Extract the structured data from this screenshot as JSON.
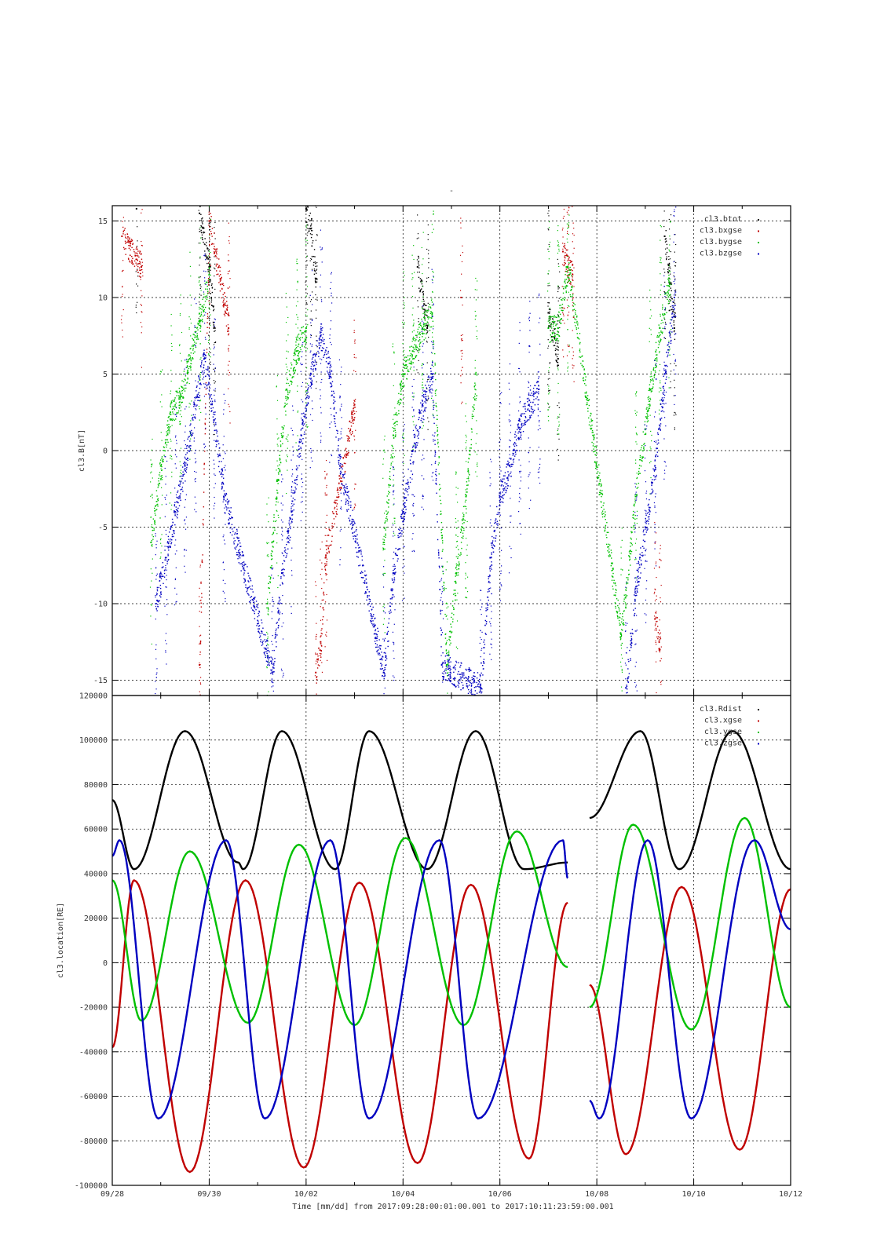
{
  "figure": {
    "title_mark": "-",
    "xlabel": "Time [mm/dd]  from 2017:09:28:00:01:00.001  to  2017:10:11:23:59:00.001",
    "x_tick_labels": [
      "09/28",
      "09/30",
      "10/02",
      "10/04",
      "10/06",
      "10/08",
      "10/10",
      "10/12"
    ],
    "colors": {
      "black": "#000000",
      "red": "#c00000",
      "green": "#00c000",
      "blue": "#0000c0"
    }
  },
  "chart_data": [
    {
      "type": "scatter",
      "ylabel": "cl3.B[nT]",
      "xlim_days": [
        0,
        14
      ],
      "ylim": [
        -16,
        16
      ],
      "y_ticks": [
        15,
        10,
        5,
        0,
        -5,
        -10,
        -15
      ],
      "y_tick_labels": [
        "15",
        "10",
        "5",
        "0",
        "-5",
        "-10",
        "-15"
      ],
      "grid": true,
      "legend_position": "top-right",
      "series": [
        {
          "name": "cl3.btot",
          "color": "#000000",
          "x": [
            0.5,
            1.8,
            2.0,
            2.1,
            4.0,
            4.1,
            4.2,
            6.3,
            6.5,
            9.0,
            9.2,
            11.4,
            11.5,
            11.6
          ],
          "y": [
            15.8,
            15.5,
            12.0,
            8.0,
            15.8,
            14.5,
            11.0,
            12.0,
            8.0,
            9.0,
            6.0,
            14.0,
            11.0,
            8.0
          ]
        },
        {
          "name": "cl3.bxgse",
          "color": "#c00000",
          "x": [
            0.2,
            0.6,
            1.8,
            2.0,
            2.4,
            4.2,
            4.3,
            4.4,
            5.0,
            7.2,
            9.3,
            9.4,
            9.5,
            11.2,
            11.3
          ],
          "y": [
            14.0,
            12.0,
            -14.0,
            15.0,
            8.0,
            -14.5,
            -12.5,
            -7.0,
            3.0,
            10.0,
            13.0,
            12.0,
            11.5,
            -11.0,
            -13.0
          ]
        },
        {
          "name": "cl3.bygse",
          "color": "#00c000",
          "x": [
            0.8,
            1.0,
            1.2,
            1.4,
            1.6,
            1.8,
            2.0,
            3.2,
            3.4,
            3.6,
            3.8,
            4.0,
            5.6,
            5.8,
            6.0,
            6.2,
            6.4,
            6.6,
            6.9,
            7.1,
            7.3,
            7.5,
            9.0,
            9.2,
            9.4,
            10.5,
            10.8,
            11.1,
            11.3,
            11.5
          ],
          "y": [
            -6.0,
            -1.0,
            2.5,
            3.5,
            6.0,
            8.5,
            11.5,
            -10.0,
            -2.0,
            4.0,
            6.5,
            8.0,
            -6.0,
            1.0,
            5.0,
            6.5,
            8.0,
            9.0,
            -14.0,
            -8.0,
            -3.0,
            5.0,
            8.0,
            8.0,
            12.0,
            -12.0,
            -3.0,
            4.0,
            8.0,
            11.0
          ]
        },
        {
          "name": "cl3.bzgse",
          "color": "#0000c0",
          "x": [
            0.9,
            1.1,
            1.3,
            1.5,
            1.7,
            1.9,
            2.1,
            2.3,
            3.3,
            3.5,
            3.7,
            3.9,
            4.1,
            4.3,
            4.5,
            4.7,
            5.6,
            5.8,
            6.0,
            6.2,
            6.4,
            6.6,
            6.8,
            7.6,
            7.8,
            8.0,
            8.2,
            8.4,
            8.6,
            8.8,
            10.6,
            10.8,
            11.0,
            11.2,
            11.4,
            11.6
          ],
          "y": [
            -10.0,
            -7.0,
            -4.0,
            -1.0,
            3.0,
            6.0,
            2.0,
            -3.0,
            -14.5,
            -8.0,
            -4.0,
            1.0,
            5.0,
            7.5,
            5.0,
            -1.0,
            -14.5,
            -8.0,
            -4.0,
            0.0,
            3.0,
            5.0,
            -14.0,
            -15.5,
            -7.0,
            -3.0,
            -1.0,
            1.5,
            3.0,
            4.0,
            -15.5,
            -9.0,
            -5.0,
            -1.0,
            5.0,
            10.0
          ]
        }
      ]
    },
    {
      "type": "line",
      "ylabel": "cl3.location[RE]",
      "xlim_days": [
        0,
        14
      ],
      "ylim": [
        -100000,
        120000
      ],
      "y_ticks": [
        120000,
        100000,
        80000,
        60000,
        40000,
        20000,
        0,
        -20000,
        -40000,
        -60000,
        -80000,
        -100000
      ],
      "y_tick_labels": [
        "120000",
        "100000",
        "80000",
        "60000",
        "40000",
        "20000",
        "0",
        "-20000",
        "-40000",
        "-60000",
        "-80000",
        "-100000"
      ],
      "grid": true,
      "legend_position": "top-right",
      "data_gap_days": [
        9.4,
        9.85
      ],
      "series": [
        {
          "name": "cl3.Rdist",
          "color": "#000000",
          "x": [
            0.0,
            0.45,
            1.5,
            2.6,
            2.7,
            3.5,
            4.6,
            5.3,
            6.5,
            7.5,
            8.5,
            9.4,
            9.85,
            10.9,
            11.7,
            12.8,
            14.0
          ],
          "y": [
            73000,
            42000,
            104000,
            45000,
            42000,
            104000,
            42000,
            104000,
            42000,
            104000,
            42000,
            45000,
            65000,
            104000,
            42000,
            104000,
            42000
          ]
        },
        {
          "name": "cl3.xgse",
          "color": "#c00000",
          "x": [
            0.0,
            0.45,
            1.6,
            2.75,
            3.95,
            5.1,
            6.3,
            7.4,
            8.6,
            9.4,
            9.85,
            10.6,
            11.75,
            12.95,
            14.0
          ],
          "y": [
            -38000,
            37000,
            -94000,
            37000,
            -92000,
            36000,
            -90000,
            35000,
            -88000,
            27000,
            -10000,
            -86000,
            34000,
            -84000,
            33000
          ]
        },
        {
          "name": "cl3.ygse",
          "color": "#00c000",
          "x": [
            0.0,
            0.6,
            1.6,
            2.8,
            3.85,
            5.0,
            6.05,
            7.25,
            8.35,
            9.4,
            9.85,
            10.75,
            11.95,
            13.05,
            14.0
          ],
          "y": [
            37000,
            -26000,
            50000,
            -27000,
            53000,
            -28000,
            56000,
            -28000,
            59000,
            -2000,
            -20000,
            62000,
            -30000,
            65000,
            -20000
          ]
        },
        {
          "name": "cl3.zgse",
          "color": "#0000c0",
          "x": [
            0.0,
            0.15,
            0.95,
            2.35,
            3.15,
            4.5,
            5.3,
            6.75,
            7.55,
            9.3,
            9.4,
            9.85,
            10.05,
            11.05,
            11.95,
            13.25,
            14.0
          ],
          "y": [
            48000,
            55000,
            -70000,
            55000,
            -70000,
            55000,
            -70000,
            55000,
            -70000,
            55000,
            38000,
            -62000,
            -70000,
            55000,
            -70000,
            55000,
            15000
          ]
        }
      ]
    }
  ]
}
